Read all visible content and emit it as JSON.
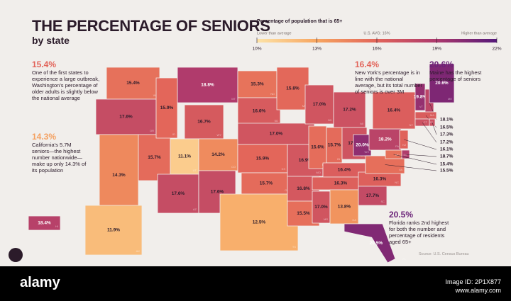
{
  "chart_data": {
    "type": "map",
    "title": "THE PERCENTAGE OF SENIORS",
    "subtitle": "by state",
    "codes": [
      "WA",
      "OR",
      "CA",
      "NV",
      "ID",
      "MT",
      "WY",
      "UT",
      "CO",
      "AZ",
      "NM",
      "ND",
      "SD",
      "NE",
      "KS",
      "OK",
      "TX",
      "MN",
      "MO",
      "AR",
      "LA",
      "WI",
      "IL",
      "IN",
      "MI",
      "OH",
      "KY",
      "TN",
      "MS",
      "GA",
      "NC",
      "SC",
      "FL",
      "WV",
      "PA",
      "NY",
      "VA",
      "VT",
      "NH",
      "ME",
      "MA",
      "RI",
      "CT",
      "NJ",
      "DE",
      "MD",
      "AK",
      "HI"
    ],
    "values": [
      15.4,
      17.6,
      14.3,
      15.7,
      15.9,
      18.8,
      16.7,
      11.1,
      14.2,
      17.6,
      17.6,
      15.3,
      16.6,
      17.0,
      15.9,
      15.7,
      12.5,
      15.8,
      16.9,
      16.8,
      15.5,
      17.0,
      15.6,
      15.7,
      17.2,
      17.1,
      16.4,
      16.3,
      17.0,
      13.8,
      16.3,
      17.7,
      20.5,
      20.0,
      18.2,
      16.4,
      15.5,
      19.8,
      18.1,
      20.6,
      16.5,
      17.3,
      17.2,
      16.1,
      18.7,
      15.4,
      11.9,
      18.4
    ],
    "value_labels": [
      "15.4%",
      "17.6%",
      "14.3%",
      "15.7%",
      "15.9%",
      "18.8%",
      "16.7%",
      "11.1%",
      "14.2%",
      "17.6%",
      "17.6%",
      "15.3%",
      "16.6%",
      "17.0%",
      "15.9%",
      "15.7%",
      "12.5%",
      "15.8%",
      "16.9%",
      "16.8%",
      "15.5%",
      "17.0%",
      "15.6%",
      "15.7%",
      "17.2%",
      "17.1%",
      "16.4%",
      "16.3%",
      "17.0%",
      "13.8%",
      "16.3%",
      "17.7%",
      "20.5%",
      "20.0%",
      "18.2%",
      "16.4%",
      "15.5%",
      "19.8%",
      "18.1%",
      "20.6%",
      "16.5%",
      "17.3%",
      "17.2%",
      "16.1%",
      "18.7%",
      "15.4%",
      "11.9%",
      "18.4%"
    ],
    "legend": {
      "title": "Percentage of population that is 65+",
      "low_label": "Lower than average",
      "high_label": "Higher than average",
      "avg": {
        "value": 16,
        "label": "U.S. AVG: 16%"
      },
      "ticks": [
        {
          "value": 10,
          "label": "10%"
        },
        {
          "value": 13,
          "label": "13%"
        },
        {
          "value": 16,
          "label": "16%"
        },
        {
          "value": 19,
          "label": "19%"
        },
        {
          "value": 22,
          "label": "22%"
        }
      ],
      "colors": [
        "#fde3a7",
        "#f7a560",
        "#e2645a",
        "#ac386d",
        "#55197a"
      ]
    },
    "annotations": [
      {
        "value": 15.4,
        "label": "15.4%",
        "text": "One of the first states to experience a large outbreak, Washington's percentage of older adults is slightly below the national average"
      },
      {
        "value": 14.3,
        "label": "14.3%",
        "text": "California's 5.7M seniors—the highest number nationwide—make up only 14.3% of its population"
      },
      {
        "value": 16.4,
        "label": "16.4%",
        "text": "New York's percentage is in line with the national average, but its total number of seniors is over 3M"
      },
      {
        "value": 20.6,
        "label": "20.6%",
        "text": "Maine has the highest percentage of seniors"
      },
      {
        "value": 20.5,
        "label": "20.5%",
        "text": "Florida ranks 2nd highest for both the number and percentage of residents aged 65+"
      }
    ],
    "source": "Source: U.S. Census Bureau"
  },
  "footer": {
    "brand": "alamy",
    "image_id": "Image ID: 2P1X877",
    "site": "www.alamy.com"
  }
}
